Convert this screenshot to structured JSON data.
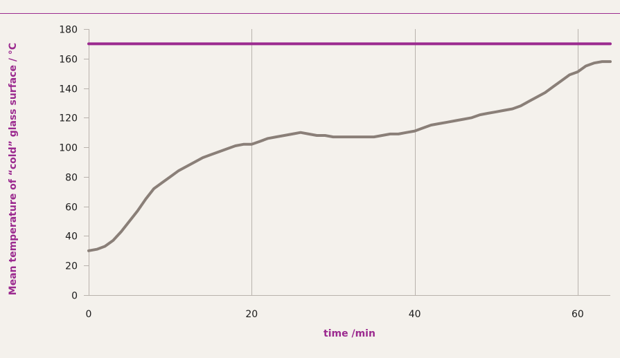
{
  "chart_data": {
    "type": "line",
    "xlabel": "time /min",
    "ylabel": "Mean temperature of “cold” glass surface / °C",
    "xlim": [
      0,
      64
    ],
    "ylim": [
      0,
      180
    ],
    "x_ticks": [
      0,
      20,
      40,
      60
    ],
    "y_ticks": [
      0,
      20,
      40,
      60,
      80,
      100,
      120,
      140,
      160,
      180
    ],
    "grid": "vertical",
    "series": [
      {
        "color": "#8a7f78",
        "x": [
          0,
          1,
          2,
          3,
          4,
          5,
          6,
          7,
          8,
          9,
          10,
          11,
          12,
          13,
          14,
          15,
          16,
          17,
          18,
          19,
          20,
          21,
          22,
          23,
          24,
          25,
          26,
          27,
          28,
          29,
          30,
          31,
          32,
          33,
          34,
          35,
          36,
          37,
          38,
          39,
          40,
          41,
          42,
          43,
          44,
          45,
          46,
          47,
          48,
          49,
          50,
          51,
          52,
          53,
          54,
          55,
          56,
          57,
          58,
          59,
          60,
          61,
          62,
          63,
          64
        ],
        "values": [
          30,
          31,
          33,
          37,
          43,
          50,
          57,
          65,
          72,
          76,
          80,
          84,
          87,
          90,
          93,
          95,
          97,
          99,
          101,
          102,
          102,
          104,
          106,
          107,
          108,
          109,
          110,
          109,
          108,
          108,
          107,
          107,
          107,
          107,
          107,
          107,
          108,
          109,
          109,
          110,
          111,
          113,
          115,
          116,
          117,
          118,
          119,
          120,
          122,
          123,
          124,
          125,
          126,
          128,
          131,
          134,
          137,
          141,
          145,
          149,
          151,
          155,
          157,
          158,
          158
        ]
      },
      {
        "color": "#9b2a8f",
        "x": [
          0,
          64
        ],
        "values": [
          170,
          170
        ]
      }
    ]
  }
}
